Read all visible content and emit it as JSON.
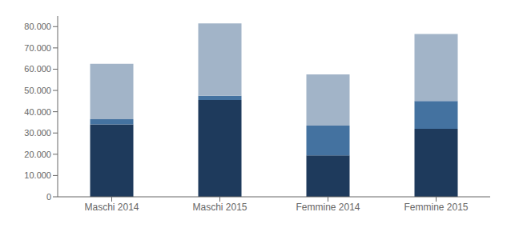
{
  "chart_data": {
    "type": "bar",
    "stacked": true,
    "categories": [
      "Maschi 2014",
      "Maschi 2015",
      "Femmine 2014",
      "Femmine 2015"
    ],
    "series": [
      {
        "color": "#1e3a5c",
        "values": [
          34000,
          45500,
          19500,
          32000
        ]
      },
      {
        "color": "#4472a0",
        "values": [
          2500,
          2000,
          14000,
          13000
        ]
      },
      {
        "color": "#a2b4c8",
        "values": [
          26000,
          34000,
          24000,
          31500
        ]
      }
    ],
    "ylim": [
      0,
      85000
    ],
    "yticks": [
      0,
      {
        "value": 10000,
        "label": "10.000"
      },
      {
        "value": 20000,
        "label": "20.000"
      },
      {
        "value": 30000,
        "label": "30.000"
      },
      {
        "value": 40000,
        "label": "40.000"
      },
      {
        "value": 50000,
        "label": "50.000"
      },
      {
        "value": 60000,
        "label": "60.000"
      },
      {
        "value": 70000,
        "label": "70.000"
      },
      {
        "value": 80000,
        "label": "80.000"
      }
    ],
    "grid": false
  }
}
